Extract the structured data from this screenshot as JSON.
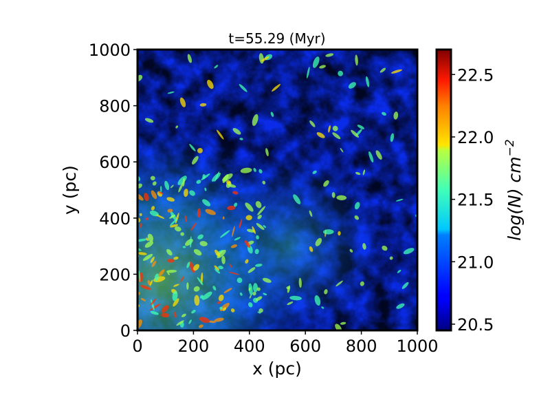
{
  "chart_data": {
    "type": "heatmap",
    "title": "t=55.29 (Myr)",
    "xlabel": "x (pc)",
    "ylabel": "y (pc)",
    "xlim": [
      0,
      1000
    ],
    "ylim": [
      0,
      1000
    ],
    "x_ticks": [
      "0",
      "200",
      "400",
      "600",
      "800",
      "1000"
    ],
    "y_ticks": [
      "0",
      "200",
      "400",
      "600",
      "800",
      "1000"
    ],
    "colorbar": {
      "label_main": "log(N) cm",
      "label_exponent": "−2",
      "range": [
        20.45,
        22.7
      ],
      "ticks": [
        "20.5",
        "21.0",
        "21.5",
        "22.0",
        "22.5"
      ],
      "colormap": "jet"
    },
    "description_values": {
      "field": "column density map, filamentary turbulent structure; higher density concentrated toward lower-left region"
    }
  }
}
